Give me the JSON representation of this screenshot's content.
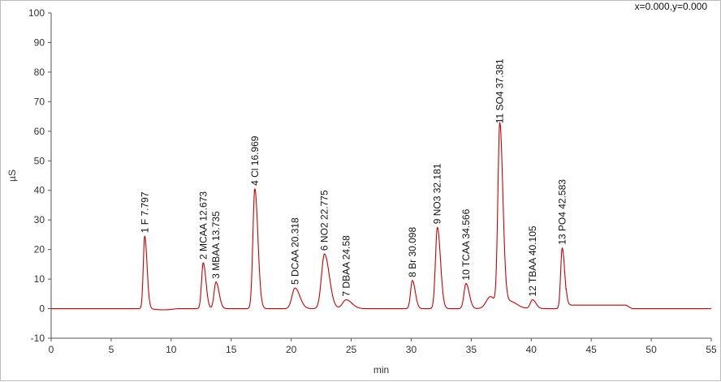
{
  "cursor_readout": "x=0.000,y=0.000",
  "colors": {
    "trace": "#cc0000",
    "axis": "#555555",
    "frame": "#bdbdbd"
  },
  "chart_data": {
    "type": "line",
    "xlabel": "min",
    "ylabel": "µS",
    "xlim": [
      0,
      55
    ],
    "ylim": [
      -10,
      100
    ],
    "x_ticks": [
      "0",
      "5",
      "10",
      "15",
      "20",
      "25",
      "30",
      "35",
      "40",
      "45",
      "50",
      "55"
    ],
    "y_ticks": [
      "-10",
      "0",
      "10",
      "20",
      "30",
      "40",
      "50",
      "60",
      "70",
      "80",
      "90",
      "100"
    ],
    "grid": false,
    "legend": "none",
    "baseline": 0,
    "peaks": [
      {
        "label": "1 F 7.797",
        "x": 7.797,
        "height": 24.5,
        "width": 0.12
      },
      {
        "label": "2 MCAA 12.673",
        "x": 12.673,
        "height": 15.5,
        "width": 0.14
      },
      {
        "label": "3 MBAA 13.735",
        "x": 13.735,
        "height": 9,
        "width": 0.16
      },
      {
        "label": "4 Cl 16.969",
        "x": 16.969,
        "height": 40.5,
        "width": 0.16
      },
      {
        "label": "5 DCAA 20.318",
        "x": 20.318,
        "height": 7,
        "width": 0.25
      },
      {
        "label": "6 NO2 22.775",
        "x": 22.775,
        "height": 18.5,
        "width": 0.25
      },
      {
        "label": "7 DBAA 24.58",
        "x": 24.58,
        "height": 3,
        "width": 0.3
      },
      {
        "label": "8 Br 30.098",
        "x": 30.098,
        "height": 9.5,
        "width": 0.15
      },
      {
        "label": "9 NO3 32.181",
        "x": 32.181,
        "height": 27.5,
        "width": 0.16
      },
      {
        "label": "10 TCAA 34.566",
        "x": 34.566,
        "height": 8.5,
        "width": 0.17
      },
      {
        "label": "11 SO4 37.381",
        "x": 37.381,
        "height": 61.5,
        "width": 0.16
      },
      {
        "label": "12 TBAA 40.105",
        "x": 40.105,
        "height": 3,
        "width": 0.18
      },
      {
        "label": "13 PO4 42.583",
        "x": 42.583,
        "height": 20.5,
        "width": 0.13
      }
    ]
  }
}
